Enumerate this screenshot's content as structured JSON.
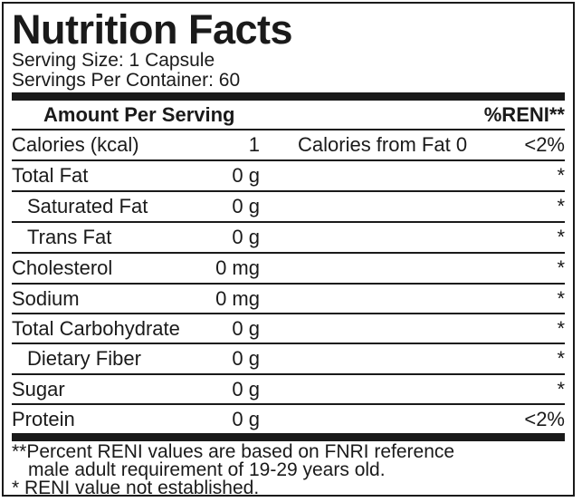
{
  "title": "Nutrition Facts",
  "serving_size": "Serving Size: 1 Capsule",
  "servings_per_container": "Servings Per Container: 60",
  "header": {
    "amount_label": "Amount Per Serving",
    "reni_label": "%RENI**"
  },
  "rows": [
    {
      "name": "Calories (kcal)",
      "amount": "1",
      "extra": "Calories from Fat 0",
      "pct": "<2%"
    },
    {
      "name": "Total Fat",
      "amount": "0 g",
      "pct": "*"
    },
    {
      "name": "Saturated Fat",
      "amount": "0 g",
      "pct": "*"
    },
    {
      "name": "Trans Fat",
      "amount": "0 g",
      "pct": "*"
    },
    {
      "name": "Cholesterol",
      "amount": "0 mg",
      "pct": "*"
    },
    {
      "name": "Sodium",
      "amount": "0 mg",
      "pct": "*"
    },
    {
      "name": "Total Carbohydrate",
      "amount": "0 g",
      "pct": "*"
    },
    {
      "name": "Dietary Fiber",
      "amount": "0 g",
      "pct": "*"
    },
    {
      "name": "Sugar",
      "amount": "0 g",
      "pct": "*"
    },
    {
      "name": "Protein",
      "amount": "0 g",
      "pct": "<2%"
    }
  ],
  "footnote": {
    "line1": "**Percent RENI values are based on FNRI reference",
    "line2": "male adult requirement of 19-29 years old.",
    "line3": "* RENI value not established."
  }
}
